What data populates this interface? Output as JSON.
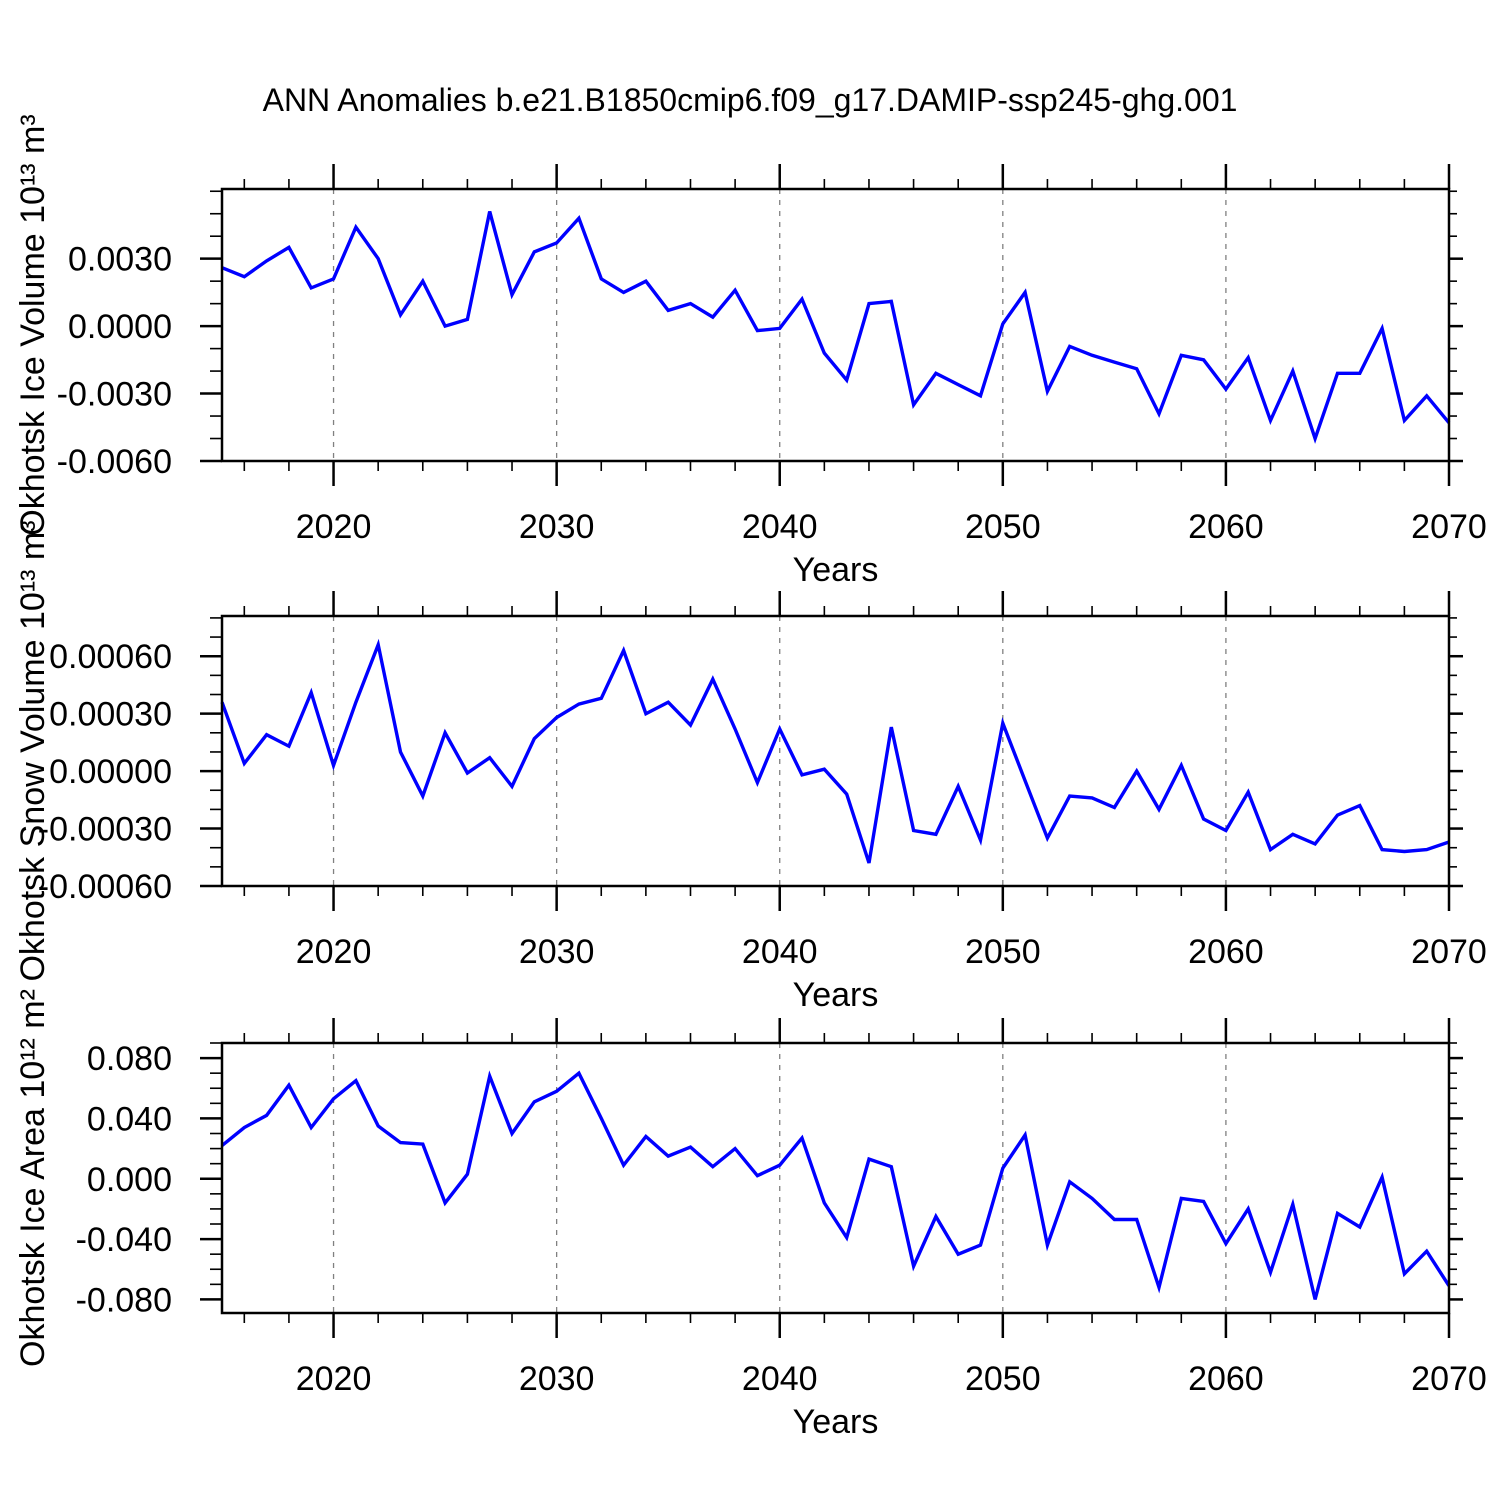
{
  "title": "ANN Anomalies b.e21.B1850cmip6.f09_g17.DAMIP-ssp245-ghg.001",
  "colors": {
    "line": "#0000ff",
    "frame": "#000000",
    "grid": "#808080",
    "text": "#000000",
    "background": "#ffffff"
  },
  "x_axis": {
    "label": "Years",
    "range": [
      2015,
      2070
    ],
    "major_ticks": [
      2020,
      2030,
      2040,
      2050,
      2060,
      2070
    ],
    "major_tick_labels": [
      "2020",
      "2030",
      "2040",
      "2050",
      "2060",
      "2070"
    ],
    "minor_step": 2,
    "gridlines": [
      2020,
      2030,
      2040,
      2050,
      2060
    ]
  },
  "chart_data": [
    {
      "type": "line",
      "id": "ice-volume",
      "ylabel": "Okhotsk Ice Volume 10¹³ m³",
      "xlabel": "Years",
      "line_color": "#0000ff",
      "legend": null,
      "grid": "vertical-dashed",
      "ylim": [
        -0.006,
        0.0061
      ],
      "y_minor_step": 0.001,
      "y_major_ticks": {
        "values": [
          0.003,
          0.0,
          -0.003,
          -0.006
        ],
        "labels": [
          "0.0030",
          "0.0000",
          "-0.0030",
          "-0.0060"
        ]
      },
      "x": [
        2015,
        2016,
        2017,
        2018,
        2019,
        2020,
        2021,
        2022,
        2023,
        2024,
        2025,
        2026,
        2027,
        2028,
        2029,
        2030,
        2031,
        2032,
        2033,
        2034,
        2035,
        2036,
        2037,
        2038,
        2039,
        2040,
        2041,
        2042,
        2043,
        2044,
        2045,
        2046,
        2047,
        2048,
        2049,
        2050,
        2051,
        2052,
        2053,
        2054,
        2055,
        2056,
        2057,
        2058,
        2059,
        2060,
        2061,
        2062,
        2063,
        2064,
        2065,
        2066,
        2067,
        2068,
        2069,
        2070
      ],
      "values": [
        0.0026,
        0.0022,
        0.0029,
        0.0035,
        0.0017,
        0.0021,
        0.0044,
        0.003,
        0.0005,
        0.002,
        0.0,
        0.0003,
        0.0051,
        0.0014,
        0.0033,
        0.0037,
        0.0048,
        0.0021,
        0.0015,
        0.002,
        0.0007,
        0.001,
        0.0004,
        0.0016,
        -0.0002,
        -0.0001,
        0.0012,
        -0.0012,
        -0.0024,
        0.001,
        0.0011,
        -0.0035,
        -0.0021,
        -0.0026,
        -0.0031,
        0.0001,
        0.0015,
        -0.0029,
        -0.0009,
        -0.0013,
        -0.0016,
        -0.0019,
        -0.0039,
        -0.0013,
        -0.0015,
        -0.0028,
        -0.0014,
        -0.0042,
        -0.002,
        -0.005,
        -0.0021,
        -0.0021,
        -0.0001,
        -0.0042,
        -0.0031,
        -0.0043
      ]
    },
    {
      "type": "line",
      "id": "snow-volume",
      "ylabel": "Okhotsk Snow Volume 10¹³ m³",
      "xlabel": "Years",
      "line_color": "#0000ff",
      "legend": null,
      "grid": "vertical-dashed",
      "ylim": [
        -0.0006,
        0.00081
      ],
      "y_minor_step": 0.0001,
      "y_major_ticks": {
        "values": [
          0.0006,
          0.0003,
          0.0,
          -0.0003,
          -0.0006
        ],
        "labels": [
          "0.00060",
          "0.00030",
          "0.00000",
          "-0.00030",
          "-0.00060"
        ]
      },
      "x": [
        2015,
        2016,
        2017,
        2018,
        2019,
        2020,
        2021,
        2022,
        2023,
        2024,
        2025,
        2026,
        2027,
        2028,
        2029,
        2030,
        2031,
        2032,
        2033,
        2034,
        2035,
        2036,
        2037,
        2038,
        2039,
        2040,
        2041,
        2042,
        2043,
        2044,
        2045,
        2046,
        2047,
        2048,
        2049,
        2050,
        2051,
        2052,
        2053,
        2054,
        2055,
        2056,
        2057,
        2058,
        2059,
        2060,
        2061,
        2062,
        2063,
        2064,
        2065,
        2066,
        2067,
        2068,
        2069,
        2070
      ],
      "values": [
        0.00036,
        4e-05,
        0.00019,
        0.00013,
        0.00041,
        3e-05,
        0.00036,
        0.00066,
        0.0001,
        -0.00013,
        0.0002,
        -1e-05,
        7e-05,
        -8e-05,
        0.00017,
        0.00028,
        0.00035,
        0.00038,
        0.00063,
        0.0003,
        0.00036,
        0.00024,
        0.00048,
        0.00022,
        -6e-05,
        0.00022,
        -2e-05,
        1e-05,
        -0.00012,
        -0.00048,
        0.00023,
        -0.00031,
        -0.00033,
        -8e-05,
        -0.00036,
        0.00025,
        -5e-05,
        -0.00035,
        -0.00013,
        -0.00014,
        -0.00019,
        0.0,
        -0.0002,
        3e-05,
        -0.00025,
        -0.00031,
        -0.00011,
        -0.00041,
        -0.00033,
        -0.00038,
        -0.00023,
        -0.00018,
        -0.00041,
        -0.00042,
        -0.00041,
        -0.00037
      ]
    },
    {
      "type": "line",
      "id": "ice-area",
      "ylabel": "Okhotsk Ice Area 10¹² m²",
      "xlabel": "Years",
      "line_color": "#0000ff",
      "legend": null,
      "grid": "vertical-dashed",
      "ylim": [
        -0.089,
        0.09
      ],
      "y_minor_step": 0.01,
      "y_major_ticks": {
        "values": [
          0.08,
          0.04,
          0.0,
          -0.04,
          -0.08
        ],
        "labels": [
          "0.080",
          "0.040",
          "0.000",
          "-0.040",
          "-0.080"
        ]
      },
      "x": [
        2015,
        2016,
        2017,
        2018,
        2019,
        2020,
        2021,
        2022,
        2023,
        2024,
        2025,
        2026,
        2027,
        2028,
        2029,
        2030,
        2031,
        2032,
        2033,
        2034,
        2035,
        2036,
        2037,
        2038,
        2039,
        2040,
        2041,
        2042,
        2043,
        2044,
        2045,
        2046,
        2047,
        2048,
        2049,
        2050,
        2051,
        2052,
        2053,
        2054,
        2055,
        2056,
        2057,
        2058,
        2059,
        2060,
        2061,
        2062,
        2063,
        2064,
        2065,
        2066,
        2067,
        2068,
        2069,
        2070
      ],
      "values": [
        0.022,
        0.034,
        0.042,
        0.062,
        0.034,
        0.053,
        0.065,
        0.035,
        0.024,
        0.023,
        -0.016,
        0.003,
        0.068,
        0.03,
        0.051,
        0.058,
        0.07,
        0.04,
        0.009,
        0.028,
        0.015,
        0.021,
        0.008,
        0.02,
        0.002,
        0.009,
        0.027,
        -0.016,
        -0.039,
        0.013,
        0.008,
        -0.058,
        -0.025,
        -0.05,
        -0.044,
        0.007,
        0.029,
        -0.044,
        -0.002,
        -0.013,
        -0.027,
        -0.027,
        -0.072,
        -0.013,
        -0.015,
        -0.043,
        -0.02,
        -0.062,
        -0.017,
        -0.08,
        -0.023,
        -0.032,
        0.001,
        -0.063,
        -0.048,
        -0.071
      ]
    }
  ]
}
